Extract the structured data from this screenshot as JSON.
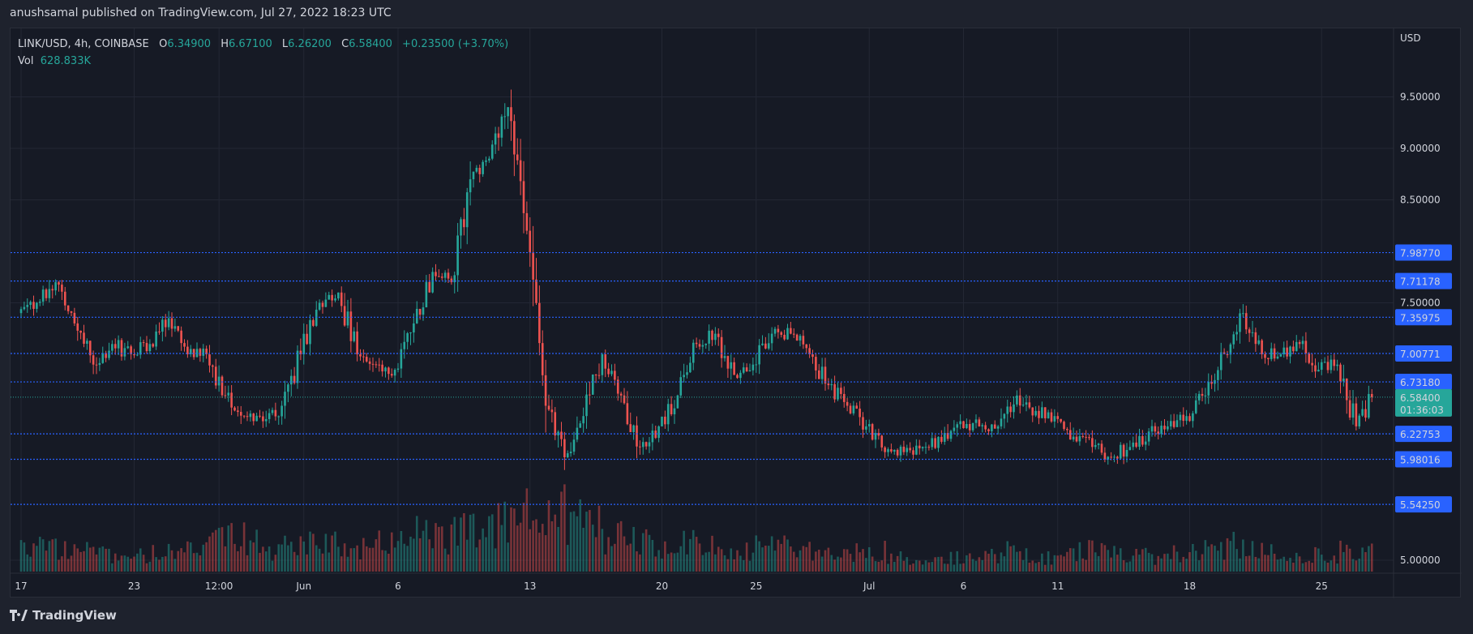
{
  "header": {
    "published": "anushsamal published on TradingView.com, Jul 27, 2022 18:23 UTC"
  },
  "legend": {
    "symbol": "LINK/USD, 4h, COINBASE",
    "o_label": "O",
    "o": "6.34900",
    "h_label": "H",
    "h": "6.67100",
    "l_label": "L",
    "l": "6.26200",
    "c_label": "C",
    "c": "6.58400",
    "change": "+0.23500 (+3.70%)",
    "vol_label": "Vol",
    "vol": "628.833K"
  },
  "footer": {
    "brand": "TradingView"
  },
  "colors": {
    "up": "#26a69a",
    "down": "#ef5350",
    "level": "#2962ff",
    "bg": "#161a25",
    "grid": "#232734"
  },
  "chart_data": {
    "type": "candlestick",
    "title": "LINK/USD, 4h, COINBASE",
    "ylabel": "USD",
    "ylim": [
      4.93,
      10.0
    ],
    "y_ticks": [
      "5.00000",
      "7.50000",
      "8.50000",
      "9.00000",
      "9.50000"
    ],
    "y_tick_values": [
      5.0,
      7.5,
      8.5,
      9.0,
      9.5
    ],
    "x_ticks": [
      {
        "label": "17",
        "day": 0
      },
      {
        "label": "23",
        "day": 6
      },
      {
        "label": "12:00",
        "day": 10.5
      },
      {
        "label": "Jun",
        "day": 15
      },
      {
        "label": "6",
        "day": 20
      },
      {
        "label": "13",
        "day": 27
      },
      {
        "label": "20",
        "day": 34
      },
      {
        "label": "25",
        "day": 39
      },
      {
        "label": "Jul",
        "day": 45
      },
      {
        "label": "6",
        "day": 50
      },
      {
        "label": "11",
        "day": 55
      },
      {
        "label": "18",
        "day": 62
      },
      {
        "label": "25",
        "day": 69
      }
    ],
    "levels": [
      {
        "label": "7.98770",
        "value": 7.9877
      },
      {
        "label": "7.71178",
        "value": 7.71178
      },
      {
        "label": "7.35975",
        "value": 7.35975
      },
      {
        "label": "7.00771",
        "value": 7.00771
      },
      {
        "label": "6.73180",
        "value": 6.7318
      },
      {
        "label": "6.22753",
        "value": 6.22753
      },
      {
        "label": "5.98016",
        "value": 5.98016
      },
      {
        "label": "5.54250",
        "value": 5.5425
      }
    ],
    "last_price": {
      "label": "6.58400",
      "value": 6.584,
      "countdown": "01:36:03"
    },
    "start_date": "2022-05-17",
    "candles_per_day": 6,
    "daily_close": [
      7.5,
      7.7,
      7.3,
      6.9,
      7.1,
      7.0,
      7.1,
      7.35,
      7.0,
      7.0,
      6.6,
      6.4,
      6.35,
      6.5,
      7.0,
      7.5,
      7.6,
      7.0,
      6.9,
      6.85,
      7.3,
      7.8,
      7.7,
      8.7,
      8.9,
      9.4,
      8.2,
      6.5,
      6.0,
      6.4,
      7.0,
      6.6,
      6.1,
      6.3,
      6.6,
      7.1,
      7.2,
      6.8,
      6.9,
      7.2,
      7.2,
      7.0,
      6.7,
      6.5,
      6.3,
      6.05,
      6.05,
      6.1,
      6.15,
      6.35,
      6.3,
      6.3,
      6.6,
      6.45,
      6.4,
      6.2,
      6.1,
      6.0,
      6.1,
      6.25,
      6.3,
      6.4,
      6.6,
      7.0,
      7.4,
      7.0,
      7.0,
      7.1,
      6.85,
      6.9,
      6.3,
      6.584
    ],
    "daily_volume_rel": [
      0.3,
      0.35,
      0.3,
      0.3,
      0.25,
      0.2,
      0.25,
      0.3,
      0.3,
      0.3,
      0.45,
      0.55,
      0.4,
      0.3,
      0.45,
      0.5,
      0.45,
      0.4,
      0.35,
      0.4,
      0.5,
      0.55,
      0.5,
      0.6,
      0.55,
      0.7,
      0.8,
      1.0,
      0.9,
      0.7,
      0.7,
      0.5,
      0.5,
      0.45,
      0.35,
      0.4,
      0.35,
      0.3,
      0.3,
      0.35,
      0.35,
      0.3,
      0.3,
      0.25,
      0.3,
      0.3,
      0.2,
      0.15,
      0.15,
      0.2,
      0.2,
      0.25,
      0.3,
      0.25,
      0.2,
      0.25,
      0.3,
      0.35,
      0.25,
      0.25,
      0.2,
      0.25,
      0.3,
      0.35,
      0.4,
      0.3,
      0.3,
      0.25,
      0.25,
      0.2,
      0.3,
      0.3
    ]
  }
}
